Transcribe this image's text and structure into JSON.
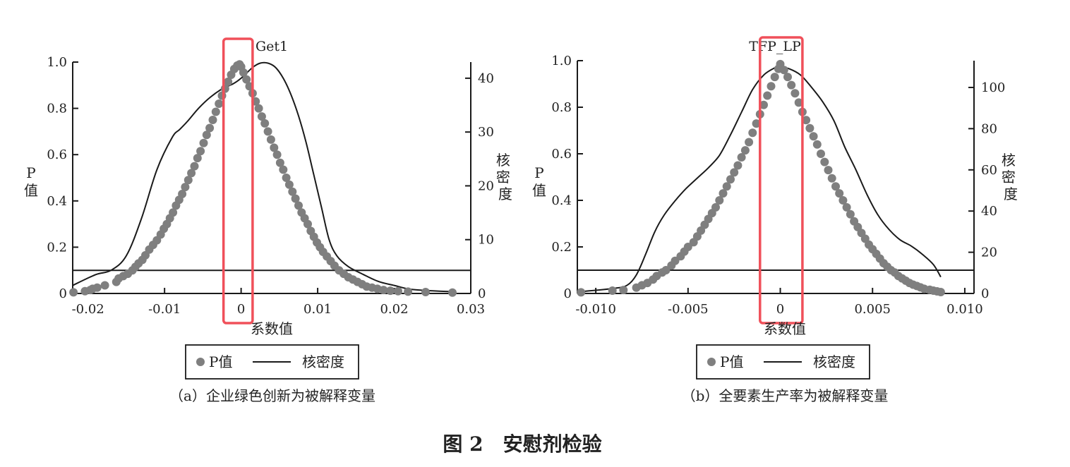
{
  "figure_title": "图 2　安慰剂检验",
  "colors": {
    "points": "#7f7f7f",
    "density": "#1a1a1a",
    "highlight": "#f0505a",
    "axis": "#1a1a1a"
  },
  "chart_data": [
    {
      "type": "scatter",
      "title": "Get1",
      "caption": "（a）企业绿色创新为被解释变量",
      "xlabel": "系数值",
      "ylabel_left": "P值",
      "ylabel_right": "核密度",
      "legend": {
        "points_label": "P值",
        "line_label": "核密度",
        "placement": "bottom-center"
      },
      "x_ticks": [
        "-0.02",
        "-0.01",
        "0",
        "0.01",
        "0.02",
        "0.03"
      ],
      "x_tick_values": [
        -0.02,
        -0.01,
        0,
        0.01,
        0.02,
        0.03
      ],
      "y_ticks": [
        "0",
        "0.2",
        "0.4",
        "0.6",
        "0.8",
        "1.0"
      ],
      "y_tick_values": [
        0,
        0.2,
        0.4,
        0.6,
        0.8,
        1.0
      ],
      "y2_ticks": [
        "0",
        "10",
        "20",
        "30",
        "40"
      ],
      "y2_tick_values": [
        0,
        10,
        20,
        30,
        40
      ],
      "xlim": [
        -0.022,
        0.03
      ],
      "ylim": [
        0,
        1.0
      ],
      "y2lim": [
        0,
        43
      ],
      "reference_line_p": 0.1,
      "highlight_x_range": [
        -0.0023,
        0.0015
      ],
      "p_value_points": {
        "x": [
          -0.0219,
          -0.0204,
          -0.0197,
          -0.0194,
          -0.0188,
          -0.0178,
          -0.0163,
          -0.016,
          -0.0154,
          -0.0148,
          -0.0142,
          -0.0138,
          -0.0134,
          -0.0129,
          -0.0125,
          -0.012,
          -0.0115,
          -0.011,
          -0.0105,
          -0.0101,
          -0.0097,
          -0.0093,
          -0.0089,
          -0.0085,
          -0.0081,
          -0.0077,
          -0.0073,
          -0.0069,
          -0.0065,
          -0.0061,
          -0.0057,
          -0.0053,
          -0.0049,
          -0.0045,
          -0.0041,
          -0.0037,
          -0.0033,
          -0.0029,
          -0.0025,
          -0.0021,
          -0.0017,
          -0.0013,
          -0.0009,
          -0.0005,
          -0.0002,
          0,
          0.0003,
          0.0007,
          0.0011,
          0.0015,
          0.0019,
          0.0023,
          0.0027,
          0.0031,
          0.0035,
          0.0039,
          0.0043,
          0.0047,
          0.0051,
          0.0055,
          0.0059,
          0.0063,
          0.0067,
          0.0071,
          0.0075,
          0.0079,
          0.0083,
          0.0087,
          0.0091,
          0.0095,
          0.0099,
          0.0103,
          0.0107,
          0.0112,
          0.0117,
          0.0122,
          0.0128,
          0.0134,
          0.014,
          0.0146,
          0.0152,
          0.0158,
          0.0164,
          0.0171,
          0.0178,
          0.0186,
          0.0195,
          0.0205,
          0.0218,
          0.0241,
          0.0276
        ],
        "p": [
          0.005,
          0.01,
          0.015,
          0.02,
          0.025,
          0.035,
          0.05,
          0.065,
          0.075,
          0.085,
          0.1,
          0.115,
          0.13,
          0.145,
          0.165,
          0.19,
          0.21,
          0.23,
          0.255,
          0.28,
          0.3,
          0.325,
          0.35,
          0.38,
          0.405,
          0.43,
          0.46,
          0.49,
          0.52,
          0.55,
          0.585,
          0.615,
          0.65,
          0.685,
          0.715,
          0.75,
          0.785,
          0.82,
          0.855,
          0.885,
          0.915,
          0.945,
          0.97,
          0.985,
          0.99,
          0.98,
          0.955,
          0.925,
          0.895,
          0.865,
          0.83,
          0.8,
          0.765,
          0.735,
          0.7,
          0.665,
          0.63,
          0.6,
          0.565,
          0.535,
          0.5,
          0.47,
          0.44,
          0.41,
          0.38,
          0.35,
          0.325,
          0.3,
          0.27,
          0.245,
          0.22,
          0.2,
          0.18,
          0.16,
          0.14,
          0.12,
          0.1,
          0.085,
          0.07,
          0.06,
          0.05,
          0.04,
          0.03,
          0.025,
          0.02,
          0.015,
          0.012,
          0.01,
          0.008,
          0.006,
          0.004
        ]
      },
      "density_curve": {
        "x": [
          -0.022,
          -0.019,
          -0.017,
          -0.015,
          -0.013,
          -0.011,
          -0.009,
          -0.008,
          -0.007,
          -0.0055,
          -0.004,
          -0.0025,
          -0.001,
          0,
          0.0015,
          0.0025,
          0.0035,
          0.0045,
          0.0055,
          0.0065,
          0.0075,
          0.0085,
          0.0095,
          0.0105,
          0.0115,
          0.0125,
          0.014,
          0.016,
          0.018,
          0.02,
          0.022,
          0.025,
          0.028
        ],
        "y": [
          1.5,
          3.5,
          4.3,
          7,
          14,
          23,
          29,
          30.5,
          32,
          34.5,
          36.5,
          38,
          39,
          40,
          42,
          42.8,
          42.8,
          42,
          40,
          37,
          33,
          28,
          22,
          16,
          10,
          7,
          5,
          3.5,
          2.2,
          1.5,
          0.8,
          0.5,
          0.3
        ]
      }
    },
    {
      "type": "scatter",
      "title": "TFP_LP",
      "caption": "（b）全要素生产率为被解释变量",
      "xlabel": "系数值",
      "ylabel_left": "P值",
      "ylabel_right": "核密度",
      "legend": {
        "points_label": "P值",
        "line_label": "核密度",
        "placement": "bottom-center"
      },
      "x_ticks": [
        "-0.010",
        "-0.005",
        "0",
        "0.005",
        "0.010"
      ],
      "x_tick_values": [
        -0.01,
        -0.005,
        0,
        0.005,
        0.01
      ],
      "y_ticks": [
        "0",
        "0.2",
        "0.4",
        "0.6",
        "0.8",
        "1.0"
      ],
      "y_tick_values": [
        0,
        0.2,
        0.4,
        0.6,
        0.8,
        1.0
      ],
      "y2_ticks": [
        "0",
        "20",
        "40",
        "60",
        "80",
        "100"
      ],
      "y2_tick_values": [
        0,
        20,
        40,
        60,
        80,
        100
      ],
      "xlim": [
        -0.011,
        0.0105
      ],
      "ylim": [
        0,
        1.0
      ],
      "y2lim": [
        0,
        113
      ],
      "reference_line_p": 0.1,
      "highlight_x_range": [
        -0.0011,
        0.0012
      ],
      "p_value_points": {
        "x": [
          -0.0108,
          -0.0091,
          -0.0085,
          -0.0078,
          -0.0075,
          -0.0072,
          -0.0069,
          -0.0067,
          -0.0064,
          -0.0062,
          -0.0059,
          -0.0057,
          -0.0054,
          -0.0052,
          -0.005,
          -0.0047,
          -0.0045,
          -0.0043,
          -0.0041,
          -0.0039,
          -0.0037,
          -0.0035,
          -0.0033,
          -0.0031,
          -0.0029,
          -0.0027,
          -0.0025,
          -0.0023,
          -0.0021,
          -0.0019,
          -0.0017,
          -0.0015,
          -0.0013,
          -0.0011,
          -0.0009,
          -0.0007,
          -0.0005,
          -0.0003,
          -0.0001,
          0,
          0.0002,
          0.0004,
          0.0006,
          0.0008,
          0.001,
          0.0012,
          0.0014,
          0.0016,
          0.0018,
          0.002,
          0.0022,
          0.0024,
          0.0026,
          0.0028,
          0.003,
          0.0032,
          0.0034,
          0.0036,
          0.0038,
          0.004,
          0.0042,
          0.0044,
          0.0046,
          0.0048,
          0.005,
          0.0052,
          0.0054,
          0.0056,
          0.0058,
          0.006,
          0.0062,
          0.0064,
          0.0066,
          0.0068,
          0.007,
          0.0072,
          0.0074,
          0.0076,
          0.0078,
          0.0081,
          0.0083,
          0.0085,
          0.0087
        ],
        "p": [
          0.005,
          0.012,
          0.015,
          0.025,
          0.035,
          0.045,
          0.06,
          0.075,
          0.09,
          0.1,
          0.12,
          0.14,
          0.16,
          0.18,
          0.2,
          0.22,
          0.245,
          0.27,
          0.295,
          0.32,
          0.345,
          0.37,
          0.4,
          0.43,
          0.46,
          0.49,
          0.52,
          0.55,
          0.585,
          0.615,
          0.65,
          0.69,
          0.73,
          0.77,
          0.81,
          0.85,
          0.89,
          0.93,
          0.965,
          0.985,
          0.96,
          0.93,
          0.895,
          0.86,
          0.82,
          0.78,
          0.745,
          0.71,
          0.675,
          0.64,
          0.6,
          0.565,
          0.53,
          0.495,
          0.46,
          0.43,
          0.4,
          0.37,
          0.34,
          0.31,
          0.285,
          0.26,
          0.235,
          0.21,
          0.19,
          0.17,
          0.15,
          0.13,
          0.115,
          0.1,
          0.09,
          0.075,
          0.065,
          0.055,
          0.045,
          0.038,
          0.032,
          0.026,
          0.02,
          0.016,
          0.012,
          0.009,
          0.006
        ]
      },
      "density_curve": {
        "x": [
          -0.0107,
          -0.009,
          -0.0083,
          -0.0078,
          -0.0073,
          -0.0068,
          -0.0063,
          -0.0057,
          -0.0051,
          -0.0045,
          -0.0039,
          -0.0033,
          -0.0027,
          -0.0021,
          -0.0015,
          -0.0009,
          -0.0003,
          0,
          0.0005,
          0.0011,
          0.0017,
          0.0023,
          0.0029,
          0.0035,
          0.0041,
          0.0047,
          0.0053,
          0.0059,
          0.0065,
          0.0071,
          0.0077,
          0.0083,
          0.0087
        ],
        "y": [
          1,
          2.5,
          4,
          9,
          19,
          30,
          38,
          45,
          51,
          56,
          61,
          67,
          77,
          88,
          99,
          106,
          109.5,
          110,
          109,
          106,
          100,
          93,
          84,
          71,
          60,
          48,
          38,
          31,
          26,
          23,
          19,
          14,
          8
        ]
      }
    }
  ]
}
